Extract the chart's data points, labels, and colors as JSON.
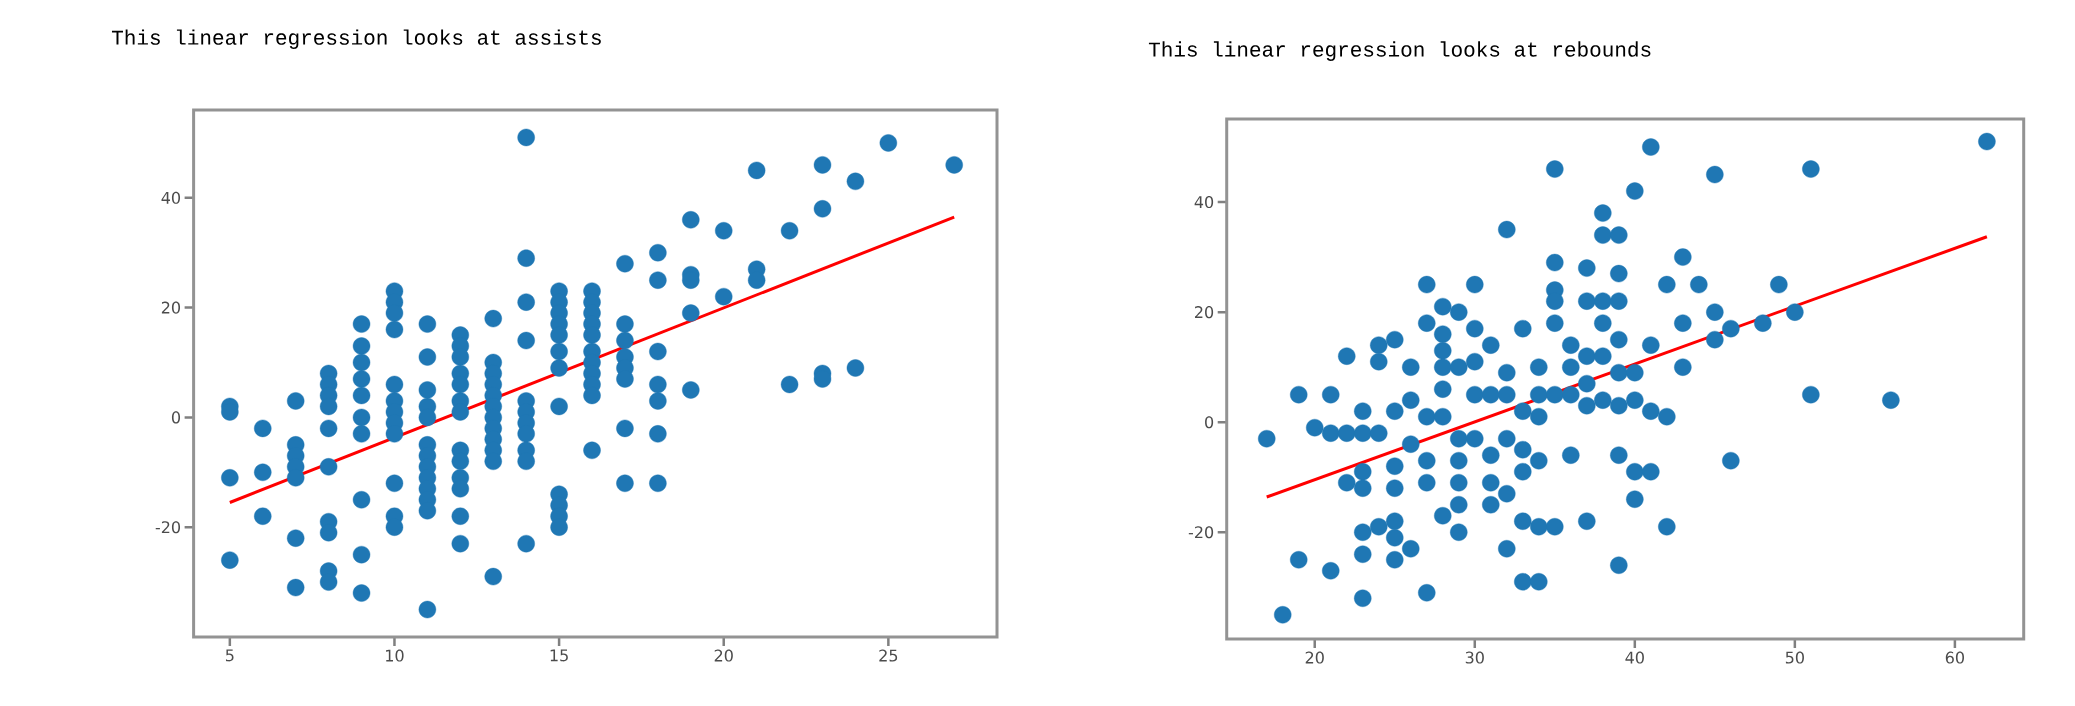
{
  "chart_data": [
    {
      "type": "scatter",
      "title": "This linear regression looks at assists",
      "xlim": [
        3.9,
        28.3
      ],
      "ylim": [
        -40,
        56
      ],
      "xticks": [
        5,
        10,
        15,
        20,
        25
      ],
      "yticks": [
        -20,
        0,
        20,
        40
      ],
      "series": [
        {
          "color": "#1f77b4",
          "x": [
            5,
            5,
            5,
            5,
            6,
            6,
            6,
            7,
            7,
            7,
            7,
            7,
            7,
            7,
            8,
            8,
            8,
            8,
            8,
            8,
            8,
            8,
            8,
            8,
            9,
            9,
            9,
            9,
            9,
            9,
            9,
            9,
            9,
            9,
            10,
            10,
            10,
            10,
            10,
            10,
            10,
            10,
            10,
            10,
            10,
            10,
            11,
            11,
            11,
            11,
            11,
            11,
            11,
            11,
            11,
            11,
            11,
            11,
            11,
            12,
            12,
            12,
            12,
            12,
            12,
            12,
            12,
            12,
            12,
            12,
            12,
            12,
            13,
            13,
            13,
            13,
            13,
            13,
            13,
            13,
            13,
            13,
            13,
            13,
            14,
            14,
            14,
            14,
            14,
            14,
            14,
            14,
            14,
            14,
            14,
            15,
            15,
            15,
            15,
            15,
            15,
            15,
            15,
            15,
            15,
            15,
            15,
            16,
            16,
            16,
            16,
            16,
            16,
            16,
            16,
            16,
            16,
            16,
            17,
            17,
            17,
            17,
            17,
            17,
            17,
            17,
            18,
            18,
            18,
            18,
            18,
            18,
            18,
            19,
            19,
            19,
            19,
            19,
            20,
            20,
            21,
            21,
            21,
            22,
            22,
            23,
            23,
            23,
            23,
            24,
            24,
            25,
            27
          ],
          "values": [
            2,
            1,
            -11,
            -26,
            -2,
            -10,
            -18,
            3,
            -5,
            -7,
            -9,
            -11,
            -22,
            -31,
            8,
            6,
            4,
            2,
            -2,
            -9,
            -19,
            -21,
            -28,
            -30,
            17,
            13,
            10,
            7,
            4,
            0,
            -3,
            -15,
            -25,
            -32,
            23,
            21,
            19,
            16,
            6,
            3,
            1,
            -1,
            -3,
            -12,
            -18,
            -20,
            17,
            11,
            5,
            2,
            0,
            -5,
            -7,
            -9,
            -11,
            -13,
            -15,
            -17,
            -35,
            15,
            13,
            11,
            8,
            6,
            3,
            1,
            -6,
            -8,
            -11,
            -13,
            -18,
            -23,
            18,
            10,
            8,
            6,
            4,
            2,
            0,
            -2,
            -4,
            -6,
            -8,
            -29,
            51,
            29,
            21,
            14,
            3,
            1,
            -1,
            -3,
            -6,
            -8,
            -23,
            23,
            21,
            19,
            17,
            15,
            12,
            9,
            2,
            -14,
            -16,
            -18,
            -20,
            23,
            21,
            19,
            17,
            15,
            12,
            10,
            8,
            6,
            4,
            -6,
            28,
            17,
            14,
            11,
            9,
            7,
            -2,
            -12,
            30,
            25,
            12,
            6,
            3,
            -3,
            -12,
            36,
            26,
            25,
            19,
            5,
            34,
            22,
            45,
            27,
            25,
            34,
            6,
            46,
            38,
            8,
            7,
            43,
            9,
            50,
            46
          ]
        },
        {
          "type": "line",
          "color": "#ff0000",
          "x": [
            5,
            27
          ],
          "values": [
            -15.5,
            36.5
          ]
        }
      ]
    },
    {
      "type": "scatter",
      "title": "This linear regression looks at rebounds",
      "xlim": [
        14.5,
        64.3
      ],
      "ylim": [
        -39.4,
        55.1
      ],
      "xticks": [
        20,
        30,
        40,
        50,
        60
      ],
      "yticks": [
        -20,
        0,
        20,
        40
      ],
      "series": [
        {
          "color": "#1f77b4",
          "x": [
            17,
            18,
            19,
            19,
            20,
            21,
            21,
            21,
            22,
            23,
            22,
            22,
            23,
            23,
            23,
            23,
            23,
            23,
            24,
            24,
            24,
            24,
            25,
            25,
            25,
            25,
            25,
            25,
            25,
            26,
            26,
            26,
            26,
            27,
            27,
            27,
            27,
            27,
            27,
            28,
            28,
            28,
            28,
            28,
            28,
            28,
            29,
            29,
            29,
            29,
            29,
            29,
            29,
            30,
            30,
            30,
            30,
            30,
            31,
            31,
            31,
            31,
            31,
            32,
            32,
            32,
            32,
            32,
            32,
            33,
            33,
            33,
            33,
            33,
            33,
            34,
            34,
            34,
            34,
            34,
            34,
            35,
            35,
            35,
            35,
            35,
            35,
            35,
            36,
            36,
            36,
            36,
            37,
            37,
            37,
            37,
            37,
            37,
            38,
            38,
            38,
            38,
            38,
            38,
            39,
            39,
            39,
            39,
            39,
            39,
            39,
            39,
            40,
            40,
            40,
            40,
            40,
            41,
            41,
            41,
            41,
            42,
            42,
            42,
            43,
            43,
            43,
            44,
            45,
            45,
            45,
            46,
            46,
            48,
            50,
            49,
            51,
            51,
            56,
            62
          ],
          "values": [
            -3,
            -35,
            5,
            -25,
            -1,
            5,
            -27,
            -2,
            -2,
            -2,
            12,
            -11,
            -9,
            -12,
            2,
            -20,
            -24,
            -32,
            14,
            11,
            -2,
            -19,
            15,
            2,
            -8,
            -12,
            -18,
            -21,
            -25,
            -23,
            10,
            4,
            -4,
            25,
            18,
            1,
            -7,
            -11,
            -31,
            21,
            16,
            13,
            10,
            6,
            1,
            -17,
            20,
            10,
            -3,
            -7,
            -11,
            -15,
            -20,
            25,
            17,
            11,
            5,
            -3,
            -11,
            -15,
            14,
            5,
            -6,
            35,
            9,
            5,
            -3,
            -13,
            -23,
            17,
            2,
            -5,
            -9,
            -18,
            -29,
            10,
            5,
            1,
            -7,
            -19,
            -29,
            46,
            29,
            24,
            22,
            18,
            5,
            -19,
            14,
            10,
            5,
            -6,
            28,
            22,
            12,
            7,
            3,
            -18,
            38,
            34,
            22,
            18,
            12,
            4,
            34,
            27,
            22,
            15,
            9,
            3,
            -6,
            -26,
            42,
            9,
            4,
            -9,
            -14,
            -9,
            50,
            14,
            2,
            1,
            25,
            -19,
            30,
            18,
            10,
            25,
            45,
            20,
            15,
            17,
            -7,
            18,
            20,
            25,
            46,
            5,
            4,
            51
          ]
        },
        {
          "type": "line",
          "color": "#ff0000",
          "x": [
            17,
            62
          ],
          "values": [
            -13.6,
            33.7
          ]
        }
      ]
    }
  ]
}
